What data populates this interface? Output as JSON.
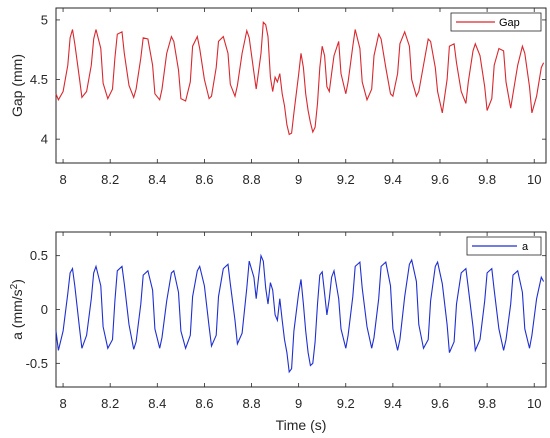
{
  "chart_data": [
    {
      "type": "line",
      "ylabel": "Gap (mm)",
      "xlabel": "",
      "xlim": [
        7.97,
        10.05
      ],
      "ylim": [
        3.8,
        5.1
      ],
      "xticks": [
        "8",
        "8.2",
        "8.4",
        "8.6",
        "8.8",
        "9",
        "9.2",
        "9.4",
        "9.6",
        "9.8",
        "10"
      ],
      "yticks": [
        "4",
        "4.5",
        "5"
      ],
      "legend_position": "top-right",
      "grid": false,
      "series": [
        {
          "name": "Gap",
          "color": "#d9282f",
          "x": [
            7.97,
            7.98,
            8.0,
            8.02,
            8.03,
            8.04,
            8.05,
            8.07,
            8.08,
            8.1,
            8.12,
            8.13,
            8.14,
            8.16,
            8.17,
            8.19,
            8.21,
            8.22,
            8.23,
            8.25,
            8.26,
            8.28,
            8.3,
            8.31,
            8.33,
            8.34,
            8.36,
            8.38,
            8.39,
            8.41,
            8.42,
            8.44,
            8.46,
            8.47,
            8.49,
            8.5,
            8.52,
            8.54,
            8.55,
            8.57,
            8.58,
            8.6,
            8.62,
            8.63,
            8.65,
            8.66,
            8.68,
            8.7,
            8.71,
            8.73,
            8.74,
            8.76,
            8.78,
            8.79,
            8.81,
            8.82,
            8.84,
            8.85,
            8.86,
            8.87,
            8.88,
            8.89,
            8.9,
            8.91,
            8.92,
            8.93,
            8.94,
            8.95,
            8.96,
            8.97,
            8.98,
            9.0,
            9.01,
            9.02,
            9.03,
            9.04,
            9.05,
            9.06,
            9.07,
            9.08,
            9.09,
            9.1,
            9.11,
            9.12,
            9.13,
            9.14,
            9.15,
            9.17,
            9.18,
            9.2,
            9.21,
            9.23,
            9.24,
            9.26,
            9.27,
            9.29,
            9.31,
            9.32,
            9.34,
            9.35,
            9.37,
            9.39,
            9.4,
            9.42,
            9.43,
            9.45,
            9.47,
            9.48,
            9.5,
            9.51,
            9.53,
            9.55,
            9.56,
            9.58,
            9.59,
            9.61,
            9.63,
            9.64,
            9.66,
            9.67,
            9.69,
            9.71,
            9.72,
            9.74,
            9.75,
            9.77,
            9.79,
            9.8,
            9.82,
            9.83,
            9.85,
            9.87,
            9.88,
            9.9,
            9.91,
            9.93,
            9.95,
            9.96,
            9.98,
            9.99,
            10.01,
            10.03,
            10.04
          ],
          "y": [
            4.38,
            4.33,
            4.4,
            4.62,
            4.85,
            4.92,
            4.8,
            4.5,
            4.35,
            4.4,
            4.62,
            4.84,
            4.92,
            4.76,
            4.47,
            4.34,
            4.42,
            4.68,
            4.88,
            4.9,
            4.72,
            4.45,
            4.35,
            4.42,
            4.68,
            4.85,
            4.84,
            4.62,
            4.38,
            4.33,
            4.42,
            4.72,
            4.86,
            4.82,
            4.58,
            4.34,
            4.32,
            4.48,
            4.78,
            4.86,
            4.76,
            4.5,
            4.34,
            4.36,
            4.6,
            4.82,
            4.86,
            4.72,
            4.46,
            4.36,
            4.45,
            4.72,
            4.91,
            4.85,
            4.56,
            4.42,
            4.72,
            4.98,
            4.96,
            4.86,
            4.52,
            4.4,
            4.52,
            4.48,
            4.55,
            4.38,
            4.28,
            4.12,
            4.04,
            4.05,
            4.22,
            4.54,
            4.72,
            4.6,
            4.38,
            4.24,
            4.14,
            4.06,
            4.1,
            4.3,
            4.6,
            4.78,
            4.7,
            4.44,
            4.4,
            4.55,
            4.7,
            4.82,
            4.55,
            4.38,
            4.48,
            4.78,
            4.92,
            4.76,
            4.48,
            4.33,
            4.42,
            4.7,
            4.88,
            4.84,
            4.6,
            4.38,
            4.36,
            4.55,
            4.8,
            4.9,
            4.78,
            4.5,
            4.36,
            4.4,
            4.62,
            4.84,
            4.82,
            4.6,
            4.4,
            4.22,
            4.5,
            4.78,
            4.8,
            4.64,
            4.4,
            4.3,
            4.48,
            4.74,
            4.8,
            4.7,
            4.44,
            4.24,
            4.34,
            4.62,
            4.76,
            4.74,
            4.48,
            4.26,
            4.38,
            4.62,
            4.78,
            4.72,
            4.44,
            4.22,
            4.36,
            4.6,
            4.64
          ]
        }
      ]
    },
    {
      "type": "line",
      "ylabel": "a (mm/s",
      "ylabel_superscript": "2",
      "ylabel_suffix": ")",
      "xlabel": "Time (s)",
      "xlim": [
        7.97,
        10.05
      ],
      "ylim": [
        -0.72,
        0.72
      ],
      "xticks": [
        "8",
        "8.2",
        "8.4",
        "8.6",
        "8.8",
        "9",
        "9.2",
        "9.4",
        "9.6",
        "9.8",
        "10"
      ],
      "yticks": [
        "-0.5",
        "0",
        "0.5"
      ],
      "legend_position": "top-right",
      "grid": false,
      "series": [
        {
          "name": "a",
          "color": "#1f2fd1",
          "x": [
            7.97,
            7.98,
            8.0,
            8.02,
            8.03,
            8.04,
            8.05,
            8.07,
            8.08,
            8.1,
            8.12,
            8.13,
            8.14,
            8.16,
            8.17,
            8.19,
            8.21,
            8.22,
            8.23,
            8.25,
            8.26,
            8.28,
            8.3,
            8.31,
            8.33,
            8.34,
            8.36,
            8.38,
            8.39,
            8.41,
            8.42,
            8.44,
            8.46,
            8.47,
            8.49,
            8.5,
            8.52,
            8.54,
            8.55,
            8.57,
            8.58,
            8.6,
            8.62,
            8.63,
            8.65,
            8.66,
            8.68,
            8.7,
            8.71,
            8.73,
            8.74,
            8.76,
            8.78,
            8.79,
            8.81,
            8.82,
            8.84,
            8.85,
            8.86,
            8.87,
            8.88,
            8.89,
            8.9,
            8.91,
            8.92,
            8.93,
            8.94,
            8.95,
            8.96,
            8.97,
            8.98,
            9.0,
            9.01,
            9.02,
            9.03,
            9.04,
            9.05,
            9.06,
            9.07,
            9.08,
            9.09,
            9.1,
            9.11,
            9.12,
            9.13,
            9.14,
            9.15,
            9.17,
            9.18,
            9.2,
            9.21,
            9.23,
            9.24,
            9.26,
            9.27,
            9.29,
            9.31,
            9.32,
            9.34,
            9.35,
            9.37,
            9.39,
            9.4,
            9.42,
            9.43,
            9.45,
            9.47,
            9.48,
            9.5,
            9.51,
            9.53,
            9.55,
            9.56,
            9.58,
            9.59,
            9.61,
            9.63,
            9.64,
            9.66,
            9.67,
            9.69,
            9.71,
            9.72,
            9.74,
            9.75,
            9.77,
            9.79,
            9.8,
            9.82,
            9.83,
            9.85,
            9.87,
            9.88,
            9.9,
            9.91,
            9.93,
            9.95,
            9.96,
            9.98,
            9.99,
            10.01,
            10.03,
            10.04
          ],
          "y": [
            -0.2,
            -0.38,
            -0.2,
            0.15,
            0.34,
            0.38,
            0.22,
            -0.18,
            -0.36,
            -0.24,
            0.1,
            0.34,
            0.4,
            0.22,
            -0.16,
            -0.36,
            -0.28,
            0.08,
            0.36,
            0.4,
            0.24,
            -0.14,
            -0.37,
            -0.3,
            0.05,
            0.32,
            0.36,
            0.18,
            -0.18,
            -0.36,
            -0.26,
            0.08,
            0.34,
            0.36,
            0.16,
            -0.2,
            -0.36,
            -0.24,
            0.12,
            0.36,
            0.4,
            0.22,
            -0.16,
            -0.34,
            -0.24,
            0.12,
            0.38,
            0.42,
            0.24,
            -0.1,
            -0.32,
            -0.22,
            0.2,
            0.45,
            0.3,
            0.1,
            0.5,
            0.45,
            0.2,
            0.05,
            0.25,
            0.18,
            -0.05,
            -0.1,
            0.1,
            -0.1,
            -0.28,
            -0.4,
            -0.58,
            -0.55,
            -0.2,
            0.15,
            0.28,
            0.05,
            -0.2,
            -0.4,
            -0.52,
            -0.5,
            -0.3,
            0.05,
            0.32,
            0.35,
            0.15,
            -0.05,
            0.1,
            0.3,
            0.36,
            0.1,
            -0.18,
            -0.36,
            -0.24,
            0.12,
            0.4,
            0.44,
            0.2,
            -0.16,
            -0.36,
            -0.26,
            0.1,
            0.4,
            0.44,
            0.22,
            -0.18,
            -0.38,
            -0.28,
            0.12,
            0.42,
            0.46,
            0.26,
            -0.14,
            -0.36,
            -0.28,
            0.08,
            0.4,
            0.44,
            0.24,
            -0.14,
            -0.4,
            -0.3,
            0.05,
            0.34,
            0.38,
            0.2,
            -0.16,
            -0.38,
            -0.28,
            0.08,
            0.34,
            0.38,
            0.18,
            -0.18,
            -0.38,
            -0.28,
            0.05,
            0.32,
            0.36,
            0.16,
            -0.18,
            -0.36,
            -0.24,
            0.1,
            0.3,
            0.26
          ]
        }
      ]
    }
  ]
}
